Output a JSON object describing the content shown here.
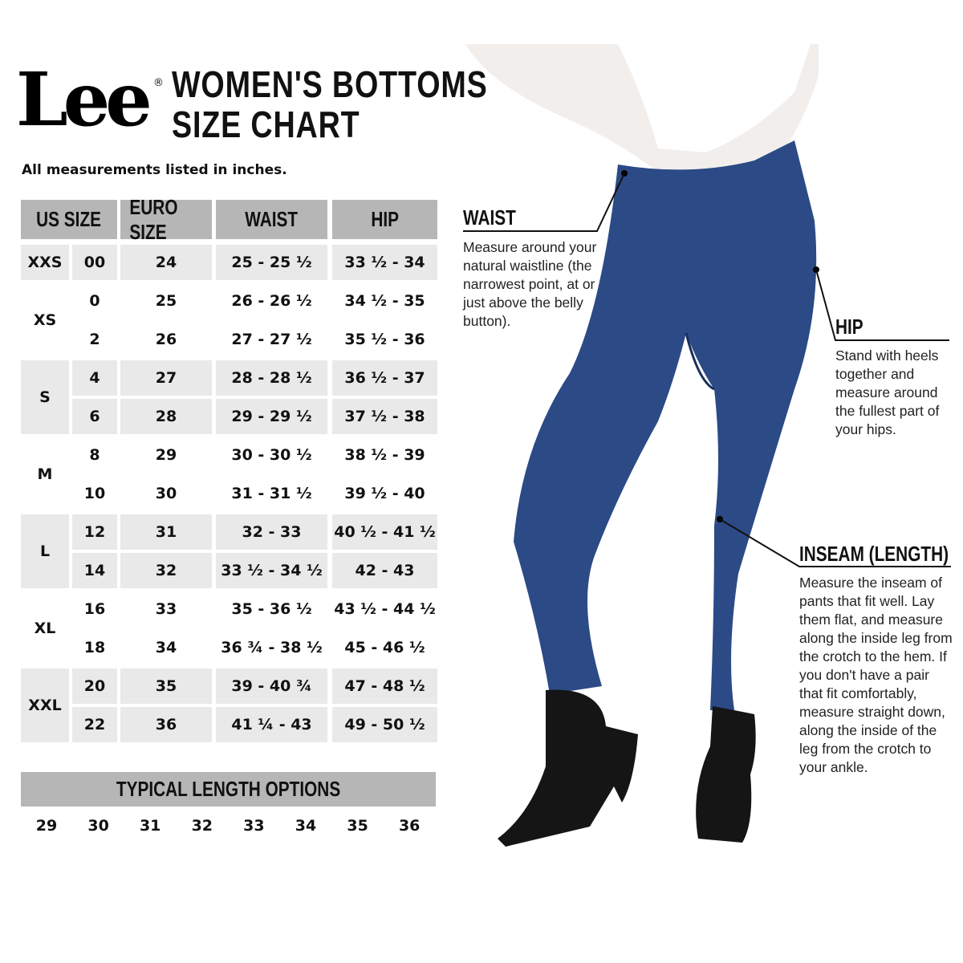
{
  "brand": {
    "logo": "Lee",
    "registered": "®"
  },
  "title": {
    "line1": "WOMEN'S BOTTOMS",
    "line2": "SIZE CHART"
  },
  "note": "All measurements listed in inches.",
  "table": {
    "headers": [
      "US SIZE",
      "EURO SIZE",
      "WAIST",
      "HIP"
    ],
    "groups": [
      {
        "letter": "XXS",
        "shaded": true,
        "rows": [
          {
            "us": "00",
            "euro": "24",
            "waist": "25 - 25 ½",
            "hip": "33 ½ - 34"
          }
        ]
      },
      {
        "letter": "XS",
        "shaded": false,
        "rows": [
          {
            "us": "0",
            "euro": "25",
            "waist": "26 - 26 ½",
            "hip": "34 ½ - 35"
          },
          {
            "us": "2",
            "euro": "26",
            "waist": "27 - 27 ½",
            "hip": "35 ½ - 36"
          }
        ]
      },
      {
        "letter": "S",
        "shaded": true,
        "rows": [
          {
            "us": "4",
            "euro": "27",
            "waist": "28 - 28 ½",
            "hip": "36 ½ - 37"
          },
          {
            "us": "6",
            "euro": "28",
            "waist": "29 - 29 ½",
            "hip": "37 ½ - 38"
          }
        ]
      },
      {
        "letter": "M",
        "shaded": false,
        "rows": [
          {
            "us": "8",
            "euro": "29",
            "waist": "30 - 30 ½",
            "hip": "38 ½ - 39"
          },
          {
            "us": "10",
            "euro": "30",
            "waist": "31 - 31 ½",
            "hip": "39 ½ - 40"
          }
        ]
      },
      {
        "letter": "L",
        "shaded": true,
        "rows": [
          {
            "us": "12",
            "euro": "31",
            "waist": "32 - 33",
            "hip": "40 ½ - 41 ½"
          },
          {
            "us": "14",
            "euro": "32",
            "waist": "33 ½ - 34 ½",
            "hip": "42 - 43"
          }
        ]
      },
      {
        "letter": "XL",
        "shaded": false,
        "rows": [
          {
            "us": "16",
            "euro": "33",
            "waist": "35 - 36 ½",
            "hip": "43 ½ - 44 ½"
          },
          {
            "us": "18",
            "euro": "34",
            "waist": "36 ¾ - 38 ½",
            "hip": "45 - 46 ½"
          }
        ]
      },
      {
        "letter": "XXL",
        "shaded": true,
        "rows": [
          {
            "us": "20",
            "euro": "35",
            "waist": "39 - 40 ¾",
            "hip": "47 - 48 ½"
          },
          {
            "us": "22",
            "euro": "36",
            "waist": "41 ¼ - 43",
            "hip": "49 - 50 ½"
          }
        ]
      }
    ]
  },
  "length": {
    "title": "TYPICAL LENGTH OPTIONS",
    "options": [
      "29",
      "30",
      "31",
      "32",
      "33",
      "34",
      "35",
      "36"
    ]
  },
  "callouts": {
    "waist": {
      "title": "WAIST",
      "text": "Measure around your natural waistline (the narrowest point, at or just above the belly button)."
    },
    "hip": {
      "title": "HIP",
      "text": "Stand with heels together and measure around the fullest part of your hips."
    },
    "inseam": {
      "title": "INSEAM (LENGTH)",
      "text": "Measure the inseam of pants that fit well. Lay them flat, and measure along the inside leg from the crotch to the hem. If you don't have a pair that fit comfortably, measure straight down, along the inside of the leg from the crotch to your ankle."
    }
  },
  "colors": {
    "header": "#b6b6b6",
    "shade": "#e9e9e9",
    "denim": "#2b4a86"
  }
}
